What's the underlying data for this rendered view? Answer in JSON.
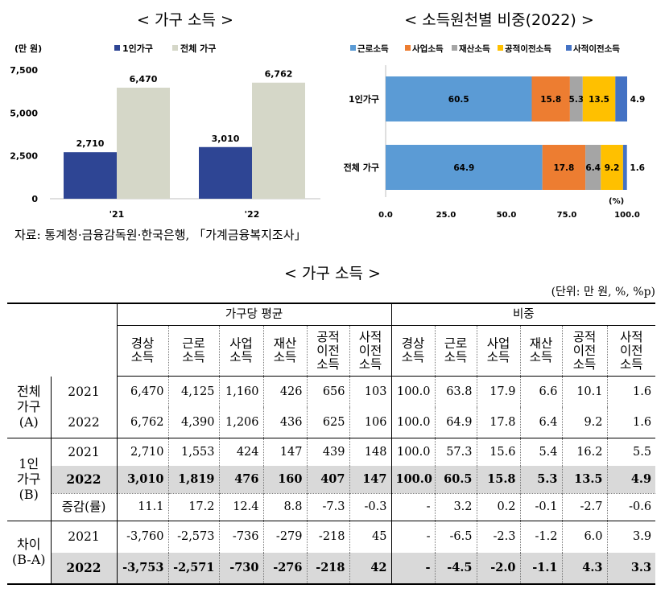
{
  "chart_data": [
    {
      "type": "bar",
      "title": "< 가구 소득 >",
      "unit_label": "(만 원)",
      "categories": [
        "'21",
        "'22"
      ],
      "series": [
        {
          "name": "1인가구",
          "color": "#2e4594",
          "values": [
            2710,
            3010
          ],
          "labels": [
            "2,710",
            "3,010"
          ]
        },
        {
          "name": "전체 가구",
          "color": "#d5d7c8",
          "values": [
            6470,
            6762
          ],
          "labels": [
            "6,470",
            "6,762"
          ]
        }
      ],
      "ylim": [
        0,
        7500
      ],
      "yticks": [
        0,
        2500,
        5000,
        7500
      ],
      "ytick_labels": [
        "0",
        "2,500",
        "5,000",
        "7,500"
      ],
      "legend_position": "top"
    },
    {
      "type": "bar",
      "orientation": "horizontal",
      "stacked": true,
      "title": "< 소득원천별 비중(2022) >",
      "categories": [
        "1인가구",
        "전체 가구"
      ],
      "series": [
        {
          "name": "근로소득",
          "color": "#5b9bd5",
          "values": [
            60.5,
            64.9
          ],
          "labels": [
            "60.5",
            "64.9"
          ]
        },
        {
          "name": "사업소득",
          "color": "#ed7d31",
          "values": [
            15.8,
            17.8
          ],
          "labels": [
            "15.8",
            "17.8"
          ]
        },
        {
          "name": "재산소득",
          "color": "#a5a5a5",
          "values": [
            5.3,
            6.4
          ],
          "labels": [
            "5.3",
            "6.4"
          ]
        },
        {
          "name": "공적이전소득",
          "color": "#ffc000",
          "values": [
            13.5,
            9.2
          ],
          "labels": [
            "13.5",
            "9.2"
          ]
        },
        {
          "name": "사적이전소득",
          "color": "#4472c4",
          "values": [
            4.9,
            1.6
          ],
          "labels": [
            "4.9",
            "1.6"
          ]
        }
      ],
      "xlim": [
        0,
        100
      ],
      "xticks": [
        0,
        25,
        50,
        75,
        100
      ],
      "xtick_labels": [
        "0.0",
        "25.0",
        "50.0",
        "75.0",
        "100.0"
      ],
      "xunit": "(%)",
      "legend_position": "top"
    }
  ],
  "source_note": "자료: 통계청·금융감독원·한국은행, 「가계금융복지조사」",
  "table": {
    "title": "< 가구 소득 >",
    "unit": "(단위: 만 원, %, %p)",
    "group_avg": "가구당 평균",
    "group_share": "비중",
    "columns_avg": [
      "경상\n소득",
      "근로\n소득",
      "사업\n소득",
      "재산\n소득",
      "공적\n이전\n소득",
      "사적\n이전\n소득"
    ],
    "columns_share": [
      "경상\n소득",
      "근로\n소득",
      "사업\n소득",
      "재산\n소득",
      "공적\n이전\n소득",
      "사적\n이전\n소득"
    ],
    "groups": [
      {
        "label": "전체\n가구\n(A)",
        "rows": [
          {
            "year": "2021",
            "avg": [
              "6,470",
              "4,125",
              "1,160",
              "426",
              "656",
              "103"
            ],
            "share": [
              "100.0",
              "63.8",
              "17.9",
              "6.6",
              "10.1",
              "1.6"
            ]
          },
          {
            "year": "2022",
            "avg": [
              "6,762",
              "4,390",
              "1,206",
              "436",
              "625",
              "106"
            ],
            "share": [
              "100.0",
              "64.9",
              "17.8",
              "6.4",
              "9.2",
              "1.6"
            ]
          }
        ]
      },
      {
        "label": "1인\n가구\n(B)",
        "rows": [
          {
            "year": "2021",
            "avg": [
              "2,710",
              "1,553",
              "424",
              "147",
              "439",
              "148"
            ],
            "share": [
              "100.0",
              "57.3",
              "15.6",
              "5.4",
              "16.2",
              "5.5"
            ]
          },
          {
            "year": "2022",
            "avg": [
              "3,010",
              "1,819",
              "476",
              "160",
              "407",
              "147"
            ],
            "share": [
              "100.0",
              "60.5",
              "15.8",
              "5.3",
              "13.5",
              "4.9"
            ]
          },
          {
            "year": "증감(률)",
            "avg": [
              "11.1",
              "17.2",
              "12.4",
              "8.8",
              "-7.3",
              "-0.3"
            ],
            "share": [
              "-",
              "3.2",
              "0.2",
              "-0.1",
              "-2.7",
              "-0.6"
            ]
          }
        ]
      },
      {
        "label": "차이\n(B-A)",
        "rows": [
          {
            "year": "2021",
            "avg": [
              "-3,760",
              "-2,573",
              "-736",
              "-279",
              "-218",
              "45"
            ],
            "share": [
              "-",
              "-6.5",
              "-2.3",
              "-1.2",
              "6.0",
              "3.9"
            ]
          },
          {
            "year": "2022",
            "avg": [
              "-3,753",
              "-2,571",
              "-730",
              "-276",
              "-218",
              "42"
            ],
            "share": [
              "-",
              "-4.5",
              "-2.0",
              "-1.1",
              "4.3",
              "3.3"
            ]
          }
        ]
      }
    ]
  }
}
